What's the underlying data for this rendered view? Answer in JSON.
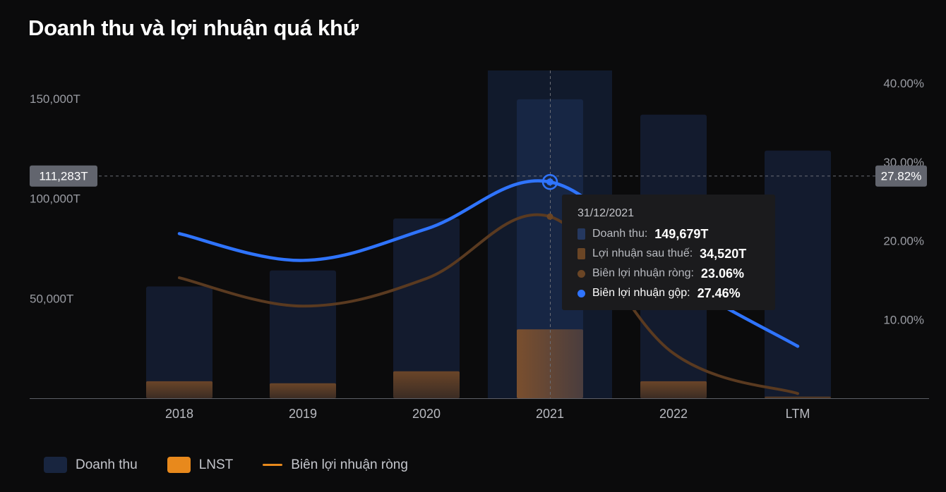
{
  "title": "Doanh thu và lợi nhuận quá khứ",
  "chart_data": {
    "type": "bar",
    "categories": [
      "2018",
      "2019",
      "2020",
      "2021",
      "2022",
      "LTM"
    ],
    "series": [
      {
        "name": "Doanh thu",
        "axis": "left",
        "type": "bar",
        "color": "#18253f",
        "values": [
          56000,
          64000,
          90000,
          149679,
          142000,
          124000
        ]
      },
      {
        "name": "LNST",
        "axis": "left",
        "type": "bar",
        "color": "#e8891c",
        "values": [
          8500,
          7500,
          13500,
          34520,
          8500,
          800
        ]
      },
      {
        "name": "Biên lợi nhuận ròng",
        "axis": "right",
        "type": "line",
        "color": "#e8891c",
        "values": [
          15.3,
          11.7,
          15.2,
          23.06,
          5.7,
          0.6
        ]
      },
      {
        "name": "Biên lợi nhuận gộp",
        "axis": "right",
        "type": "line",
        "color": "#2f74ff",
        "values": [
          20.9,
          17.5,
          21.5,
          27.46,
          15.5,
          6.6
        ]
      }
    ],
    "left_axis": {
      "ticks": [
        "150,000T",
        "100,000T",
        "50,000T"
      ],
      "tick_values": [
        150000,
        100000,
        50000
      ],
      "range": [
        0,
        150000
      ]
    },
    "right_axis": {
      "ticks": [
        "40.00%",
        "30.00%",
        "20.00%",
        "10.00%"
      ],
      "tick_values": [
        40,
        30,
        20,
        10
      ],
      "range": [
        0,
        40
      ]
    },
    "crosshair": {
      "category": "2021",
      "left_label": "111,283T",
      "right_label": "27.82%",
      "left_value": 111283,
      "right_value": 27.82
    },
    "tooltip": {
      "date": "31/12/2021",
      "rows": [
        {
          "label": "Doanh thu:",
          "value": "149,679T",
          "color": "#25385f",
          "marker": "rect"
        },
        {
          "label": "Lợi nhuận sau thuế:",
          "value": "34,520T",
          "color": "#6a4525",
          "marker": "rect"
        },
        {
          "label": "Biên lợi nhuận ròng:",
          "value": "23.06%",
          "color": "#6a4525",
          "marker": "dot"
        },
        {
          "label": "Biên lợi nhuận gộp:",
          "value": "27.46%",
          "color": "#2f74ff",
          "marker": "dot"
        }
      ]
    },
    "legend": [
      {
        "label": "Doanh thu",
        "color": "#18253f",
        "marker": "box"
      },
      {
        "label": "LNST",
        "color": "#e8891c",
        "marker": "box"
      },
      {
        "label": "Biên lợi nhuận ròng",
        "color": "#e8891c",
        "marker": "line"
      }
    ],
    "grid": false
  }
}
